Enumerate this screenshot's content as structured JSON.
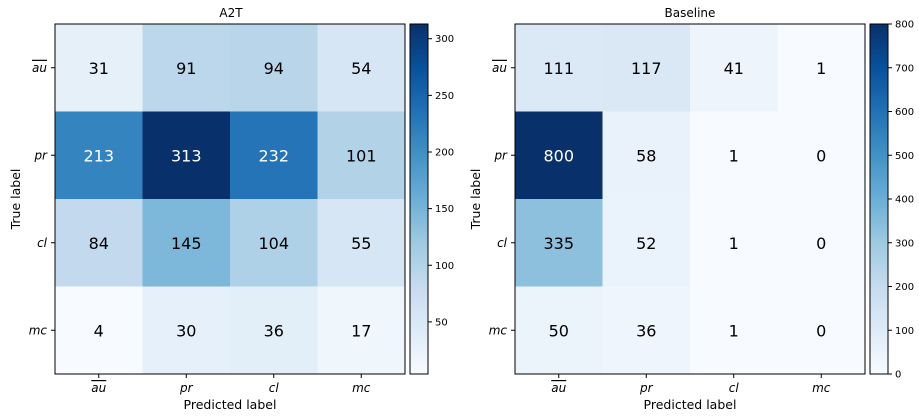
{
  "colors": {
    "colormap": "Blues",
    "low": "#f7fbff",
    "high": "#08306b",
    "text_dark": "#000000",
    "text_light": "#ffffff"
  },
  "chart_data": [
    {
      "type": "heatmap",
      "title": "A2T",
      "xlabel": "Predicted label",
      "ylabel": "True label",
      "x_categories": [
        "au",
        "pr",
        "cl",
        "mc"
      ],
      "y_categories": [
        "au",
        "pr",
        "cl",
        "mc"
      ],
      "overlined_categories": [
        "au"
      ],
      "values": [
        [
          31,
          91,
          94,
          54
        ],
        [
          213,
          313,
          232,
          101
        ],
        [
          84,
          145,
          104,
          55
        ],
        [
          4,
          30,
          36,
          17
        ]
      ],
      "value_range": [
        4,
        313
      ],
      "colorbar_ticks": [
        50,
        100,
        150,
        200,
        250,
        300
      ]
    },
    {
      "type": "heatmap",
      "title": "Baseline",
      "xlabel": "Predicted label",
      "ylabel": "True label",
      "x_categories": [
        "au",
        "pr",
        "cl",
        "mc"
      ],
      "y_categories": [
        "au",
        "pr",
        "cl",
        "mc"
      ],
      "overlined_categories": [
        "au"
      ],
      "values": [
        [
          111,
          117,
          41,
          1
        ],
        [
          800,
          58,
          1,
          0
        ],
        [
          335,
          52,
          1,
          0
        ],
        [
          50,
          36,
          1,
          0
        ]
      ],
      "value_range": [
        0,
        800
      ],
      "colorbar_ticks": [
        0,
        100,
        200,
        300,
        400,
        500,
        600,
        700,
        800
      ]
    }
  ]
}
